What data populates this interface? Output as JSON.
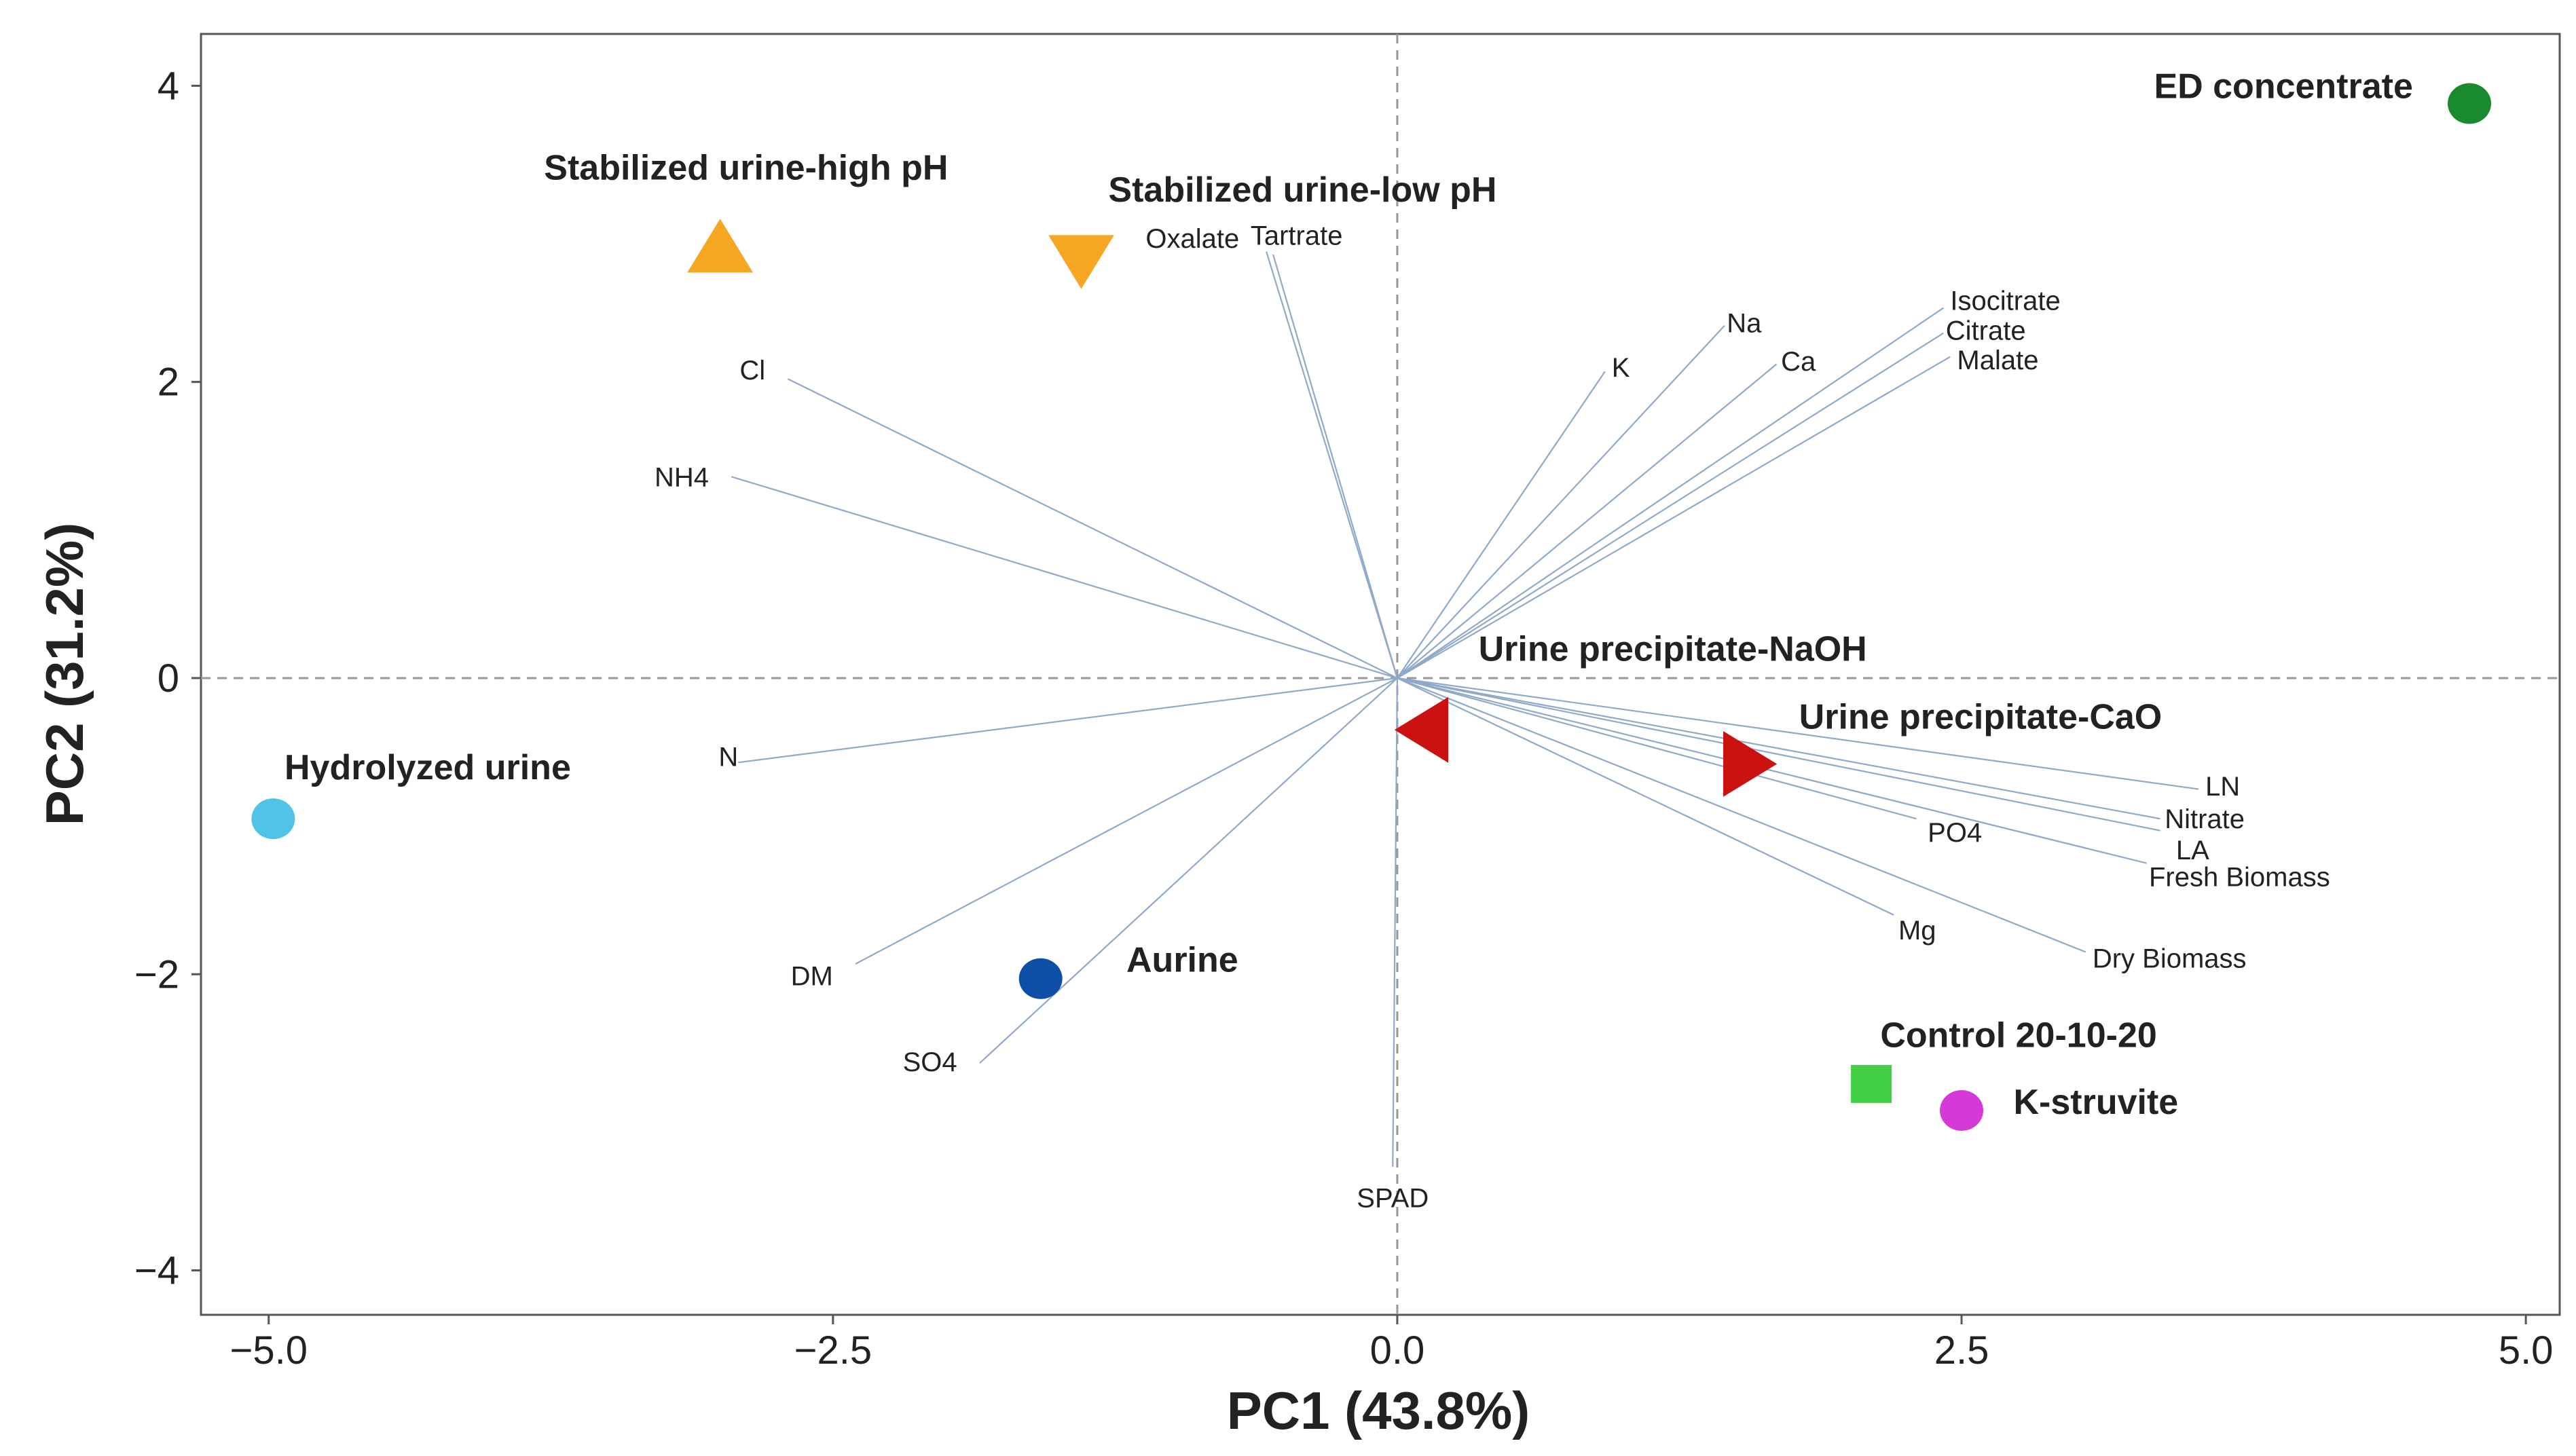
{
  "chart_data": {
    "type": "scatter",
    "subtype": "pca-biplot",
    "xlabel": "PC1 (43.8%)",
    "ylabel": "PC2 (31.2%)",
    "xlim": [
      -5.3,
      5.15
    ],
    "ylim": [
      -4.3,
      4.35
    ],
    "xticks": [
      {
        "value": -5.0,
        "label": "−5.0"
      },
      {
        "value": -2.5,
        "label": "−2.5"
      },
      {
        "value": 0.0,
        "label": "0.0"
      },
      {
        "value": 2.5,
        "label": "2.5"
      },
      {
        "value": 5.0,
        "label": "5.0"
      }
    ],
    "yticks": [
      {
        "value": 4,
        "label": "4"
      },
      {
        "value": 2,
        "label": "2"
      },
      {
        "value": 0,
        "label": "0"
      },
      {
        "value": -2,
        "label": "−2"
      },
      {
        "value": -4,
        "label": "−4"
      }
    ],
    "zero_lines": true,
    "grid": false,
    "observations": [
      {
        "name": "ED concentrate",
        "x": 4.75,
        "y": 3.88,
        "marker": "circle",
        "color": "#1a8a2e",
        "label_anchor": "end",
        "label_x": 4.5,
        "label_y": 4.0
      },
      {
        "name": "Stabilized urine-high pH",
        "x": -3.0,
        "y": 2.9,
        "marker": "triangle-up",
        "color": "#f5a623",
        "label_anchor": "start",
        "label_x": -3.78,
        "label_y": 3.45
      },
      {
        "name": "Stabilized urine-low pH",
        "x": -1.4,
        "y": 2.83,
        "marker": "triangle-down",
        "color": "#f5a623",
        "label_anchor": "start",
        "label_x": -1.28,
        "label_y": 3.3
      },
      {
        "name": "Hydrolyzed urine",
        "x": -4.98,
        "y": -0.95,
        "marker": "circle",
        "color": "#4fc3e8",
        "label_anchor": "start",
        "label_x": -4.93,
        "label_y": -0.6
      },
      {
        "name": "Aurine",
        "x": -1.58,
        "y": -2.03,
        "marker": "circle",
        "color": "#0d4ea6",
        "label_anchor": "start",
        "label_x": -1.2,
        "label_y": -1.9
      },
      {
        "name": "Urine precipitate-NaOH",
        "x": 0.12,
        "y": -0.35,
        "marker": "triangle-left",
        "color": "#cc1111",
        "label_anchor": "start",
        "label_x": 0.36,
        "label_y": 0.2
      },
      {
        "name": "Urine precipitate-CaO",
        "x": 1.55,
        "y": -0.58,
        "marker": "triangle-right",
        "color": "#cc1111",
        "label_anchor": "start",
        "label_x": 1.78,
        "label_y": -0.26
      },
      {
        "name": "Control 20-10-20",
        "x": 2.1,
        "y": -2.75,
        "marker": "square",
        "color": "#44d044",
        "label_anchor": "start",
        "label_x": 2.14,
        "label_y": -2.41
      },
      {
        "name": "K-struvite",
        "x": 2.5,
        "y": -2.92,
        "marker": "circle",
        "color": "#d63ad6",
        "label_anchor": "start",
        "label_x": 2.73,
        "label_y": -2.86
      }
    ],
    "variables": [
      {
        "name": "Oxalate",
        "x": -0.58,
        "y": 2.88,
        "label_x": -0.7,
        "label_y": 2.97,
        "anchor": "end"
      },
      {
        "name": "Tartrate",
        "x": -0.55,
        "y": 2.86,
        "label_x": -0.65,
        "label_y": 2.99,
        "anchor": "start"
      },
      {
        "name": "Cl",
        "x": -2.7,
        "y": 2.02,
        "label_x": -2.8,
        "label_y": 2.08,
        "anchor": "end"
      },
      {
        "name": "NH4",
        "x": -2.95,
        "y": 1.36,
        "label_x": -3.05,
        "label_y": 1.36,
        "anchor": "end"
      },
      {
        "name": "N",
        "x": -2.92,
        "y": -0.57,
        "label_x": -2.92,
        "label_y": -0.53,
        "anchor": "end"
      },
      {
        "name": "DM",
        "x": -2.4,
        "y": -1.93,
        "label_x": -2.5,
        "label_y": -2.01,
        "anchor": "end"
      },
      {
        "name": "SO4",
        "x": -1.85,
        "y": -2.6,
        "label_x": -1.95,
        "label_y": -2.59,
        "anchor": "end"
      },
      {
        "name": "SPAD",
        "x": -0.02,
        "y": -3.3,
        "label_x": -0.02,
        "label_y": -3.51,
        "anchor": "middle"
      },
      {
        "name": "K",
        "x": 0.92,
        "y": 2.07,
        "label_x": 0.95,
        "label_y": 2.1,
        "anchor": "start"
      },
      {
        "name": "Na",
        "x": 1.45,
        "y": 2.38,
        "label_x": 1.46,
        "label_y": 2.4,
        "anchor": "start"
      },
      {
        "name": "Ca",
        "x": 1.68,
        "y": 2.12,
        "label_x": 1.7,
        "label_y": 2.14,
        "anchor": "start"
      },
      {
        "name": "Isocitrate",
        "x": 2.42,
        "y": 2.5,
        "label_x": 2.45,
        "label_y": 2.55,
        "anchor": "start"
      },
      {
        "name": "Citrate",
        "x": 2.42,
        "y": 2.33,
        "label_x": 2.43,
        "label_y": 2.35,
        "anchor": "start"
      },
      {
        "name": "Malate",
        "x": 2.45,
        "y": 2.17,
        "label_x": 2.48,
        "label_y": 2.15,
        "anchor": "start"
      },
      {
        "name": "LN",
        "x": 3.55,
        "y": -0.75,
        "label_x": 3.58,
        "label_y": -0.73,
        "anchor": "start"
      },
      {
        "name": "Nitrate",
        "x": 3.38,
        "y": -0.95,
        "label_x": 3.4,
        "label_y": -0.95,
        "anchor": "start"
      },
      {
        "name": "LA",
        "x": 3.38,
        "y": -1.03,
        "label_x": 3.45,
        "label_y": -1.16,
        "anchor": "start"
      },
      {
        "name": "Fresh Biomass",
        "x": 3.32,
        "y": -1.25,
        "label_x": 3.33,
        "label_y": -1.34,
        "anchor": "start"
      },
      {
        "name": "PO4",
        "x": 2.3,
        "y": -0.95,
        "label_x": 2.35,
        "label_y": -1.04,
        "anchor": "start"
      },
      {
        "name": "Mg",
        "x": 2.2,
        "y": -1.6,
        "label_x": 2.22,
        "label_y": -1.7,
        "anchor": "start"
      },
      {
        "name": "Dry Biomass",
        "x": 3.05,
        "y": -1.85,
        "label_x": 3.08,
        "label_y": -1.89,
        "anchor": "start"
      }
    ]
  }
}
